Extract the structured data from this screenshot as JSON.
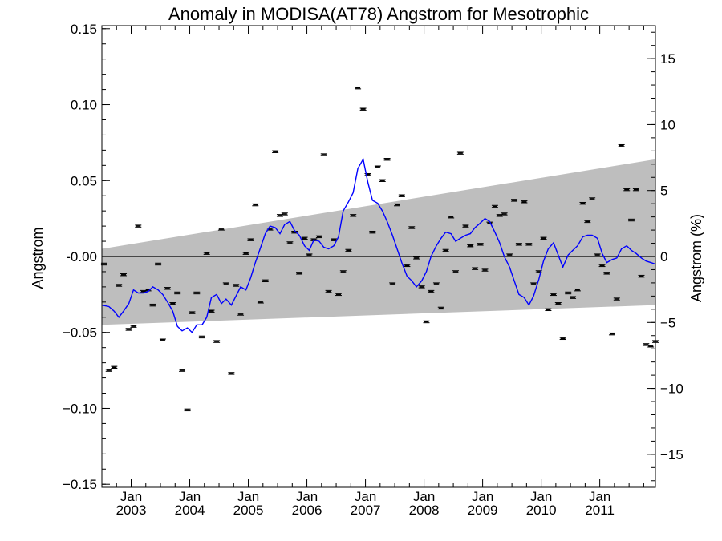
{
  "chart_data": {
    "type": "scatter",
    "title": "Anomaly in MODISA(AT78) Angstrom for Mesotrophic",
    "ylabel": "Angstrom",
    "y2label": "Angstrom (%)",
    "xlabel": "",
    "ylim": [
      -0.152,
      0.152
    ],
    "y2lim": [
      -17.5,
      17.5
    ],
    "xlim": [
      2002.5,
      2011.95
    ],
    "yticks": [
      {
        "v": 0.15,
        "label": "0.15"
      },
      {
        "v": 0.1,
        "label": "0.10"
      },
      {
        "v": 0.05,
        "label": "0.05"
      },
      {
        "v": 0.0,
        "label": "-0.00"
      },
      {
        "v": -0.05,
        "label": "−0.05"
      },
      {
        "v": -0.1,
        "label": "−0.10"
      },
      {
        "v": -0.15,
        "label": "−0.15"
      }
    ],
    "y2ticks": [
      {
        "v": 15,
        "label": "15"
      },
      {
        "v": 10,
        "label": "10"
      },
      {
        "v": 5,
        "label": "5"
      },
      {
        "v": 0,
        "label": "0"
      },
      {
        "v": -5,
        "label": "−5"
      },
      {
        "v": -10,
        "label": "−10"
      },
      {
        "v": -15,
        "label": "−15"
      }
    ],
    "xticks": [
      {
        "v": 2003.0,
        "month": "Jan",
        "year": "2003"
      },
      {
        "v": 2004.0,
        "month": "Jan",
        "year": "2004"
      },
      {
        "v": 2005.0,
        "month": "Jan",
        "year": "2005"
      },
      {
        "v": 2006.0,
        "month": "Jan",
        "year": "2006"
      },
      {
        "v": 2007.0,
        "month": "Jan",
        "year": "2007"
      },
      {
        "v": 2008.0,
        "month": "Jan",
        "year": "2008"
      },
      {
        "v": 2009.0,
        "month": "Jan",
        "year": "2009"
      },
      {
        "v": 2010.0,
        "month": "Jan",
        "year": "2010"
      },
      {
        "v": 2011.0,
        "month": "Jan",
        "year": "2011"
      }
    ],
    "band": {
      "x": [
        2002.5,
        2011.95
      ],
      "upper": [
        0.005,
        0.064
      ],
      "lower": [
        -0.045,
        -0.032
      ],
      "color": "#bebebe"
    },
    "zero_line": 0.0,
    "series": [
      {
        "kind": "points",
        "marker": "error-bar",
        "color": "#000000",
        "x": [
          2002.54,
          2002.62,
          2002.71,
          2002.79,
          2002.87,
          2002.96,
          2003.04,
          2003.12,
          2003.21,
          2003.29,
          2003.37,
          2003.46,
          2003.54,
          2003.62,
          2003.71,
          2003.79,
          2003.87,
          2003.96,
          2004.04,
          2004.12,
          2004.21,
          2004.29,
          2004.37,
          2004.46,
          2004.54,
          2004.62,
          2004.71,
          2004.79,
          2004.87,
          2004.96,
          2005.04,
          2005.12,
          2005.21,
          2005.29,
          2005.37,
          2005.46,
          2005.54,
          2005.62,
          2005.71,
          2005.79,
          2005.87,
          2005.96,
          2006.04,
          2006.12,
          2006.21,
          2006.29,
          2006.37,
          2006.46,
          2006.54,
          2006.62,
          2006.71,
          2006.79,
          2006.87,
          2006.96,
          2007.04,
          2007.12,
          2007.21,
          2007.29,
          2007.37,
          2007.46,
          2007.54,
          2007.62,
          2007.71,
          2007.79,
          2007.87,
          2007.96,
          2008.04,
          2008.12,
          2008.21,
          2008.29,
          2008.37,
          2008.46,
          2008.54,
          2008.62,
          2008.71,
          2008.79,
          2008.87,
          2008.96,
          2009.04,
          2009.12,
          2009.21,
          2009.29,
          2009.37,
          2009.46,
          2009.54,
          2009.62,
          2009.71,
          2009.79,
          2009.87,
          2009.96,
          2010.04,
          2010.12,
          2010.21,
          2010.29,
          2010.37,
          2010.46,
          2010.54,
          2010.62,
          2010.71,
          2010.79,
          2010.87,
          2010.96,
          2011.04,
          2011.12,
          2011.21,
          2011.29,
          2011.37,
          2011.46,
          2011.54,
          2011.62,
          2011.71,
          2011.79,
          2011.87,
          2011.95
        ],
        "y": [
          -0.005,
          -0.075,
          -0.073,
          -0.019,
          -0.012,
          -0.048,
          -0.046,
          0.02,
          -0.023,
          -0.022,
          -0.032,
          -0.005,
          -0.055,
          -0.021,
          -0.031,
          -0.024,
          -0.075,
          -0.101,
          -0.037,
          -0.024,
          -0.053,
          0.002,
          -0.036,
          -0.056,
          0.018,
          -0.018,
          -0.077,
          -0.019,
          -0.038,
          0.002,
          0.011,
          0.034,
          -0.03,
          -0.016,
          0.018,
          0.069,
          0.027,
          0.028,
          0.009,
          0.016,
          -0.011,
          0.012,
          0.001,
          0.011,
          0.013,
          0.067,
          -0.023,
          0.011,
          -0.025,
          -0.01,
          0.004,
          0.027,
          0.111,
          0.097,
          0.054,
          0.016,
          0.059,
          0.05,
          0.064,
          -0.018,
          0.034,
          0.04,
          -0.006,
          0.019,
          -0.001,
          -0.02,
          -0.043,
          -0.023,
          -0.018,
          -0.034,
          0.004,
          0.026,
          -0.01,
          0.068,
          0.02,
          0.007,
          -0.008,
          0.008,
          -0.009,
          0.022,
          0.033,
          0.027,
          0.028,
          0.001,
          0.037,
          0.008,
          0.036,
          0.008,
          -0.018,
          -0.01,
          0.012,
          -0.035,
          -0.025,
          -0.031,
          -0.054,
          -0.024,
          -0.027,
          -0.022,
          0.035,
          0.023,
          0.038,
          0.001,
          -0.006,
          -0.011,
          -0.051,
          -0.028,
          0.073,
          0.044,
          0.024,
          0.044,
          -0.013,
          -0.058,
          -0.059,
          -0.056
        ]
      },
      {
        "kind": "line",
        "name": "",
        "color": "#0000ff",
        "x": [
          2002.5,
          2002.62,
          2002.71,
          2002.79,
          2002.87,
          2002.96,
          2003.04,
          2003.12,
          2003.21,
          2003.29,
          2003.37,
          2003.46,
          2003.54,
          2003.62,
          2003.71,
          2003.79,
          2003.87,
          2003.96,
          2004.04,
          2004.12,
          2004.21,
          2004.29,
          2004.37,
          2004.46,
          2004.54,
          2004.62,
          2004.71,
          2004.79,
          2004.87,
          2004.96,
          2005.04,
          2005.12,
          2005.21,
          2005.29,
          2005.37,
          2005.46,
          2005.54,
          2005.62,
          2005.71,
          2005.79,
          2005.87,
          2005.96,
          2006.04,
          2006.12,
          2006.21,
          2006.29,
          2006.37,
          2006.46,
          2006.54,
          2006.62,
          2006.71,
          2006.79,
          2006.87,
          2006.96,
          2007.04,
          2007.12,
          2007.21,
          2007.29,
          2007.37,
          2007.46,
          2007.54,
          2007.62,
          2007.71,
          2007.79,
          2007.87,
          2007.96,
          2008.04,
          2008.12,
          2008.21,
          2008.29,
          2008.37,
          2008.46,
          2008.54,
          2008.62,
          2008.71,
          2008.79,
          2008.87,
          2008.96,
          2009.04,
          2009.12,
          2009.21,
          2009.29,
          2009.37,
          2009.46,
          2009.54,
          2009.62,
          2009.71,
          2009.79,
          2009.87,
          2009.96,
          2010.04,
          2010.12,
          2010.21,
          2010.29,
          2010.37,
          2010.46,
          2010.54,
          2010.62,
          2010.71,
          2010.79,
          2010.87,
          2010.96,
          2011.04,
          2011.12,
          2011.21,
          2011.29,
          2011.37,
          2011.46,
          2011.54,
          2011.62,
          2011.71,
          2011.79,
          2011.87,
          2011.95
        ],
        "y": [
          -0.032,
          -0.033,
          -0.036,
          -0.04,
          -0.036,
          -0.031,
          -0.022,
          -0.024,
          -0.024,
          -0.023,
          -0.02,
          -0.022,
          -0.025,
          -0.03,
          -0.036,
          -0.046,
          -0.049,
          -0.047,
          -0.05,
          -0.045,
          -0.045,
          -0.04,
          -0.027,
          -0.025,
          -0.031,
          -0.028,
          -0.032,
          -0.026,
          -0.02,
          -0.022,
          -0.014,
          -0.004,
          0.006,
          0.015,
          0.02,
          0.019,
          0.015,
          0.021,
          0.023,
          0.017,
          0.014,
          0.007,
          0.004,
          0.011,
          0.01,
          0.006,
          0.005,
          0.007,
          0.013,
          0.03,
          0.036,
          0.042,
          0.058,
          0.064,
          0.049,
          0.037,
          0.035,
          0.03,
          0.023,
          0.014,
          0.005,
          -0.004,
          -0.013,
          -0.016,
          -0.02,
          -0.016,
          -0.01,
          0.0,
          0.007,
          0.012,
          0.016,
          0.015,
          0.01,
          0.012,
          0.014,
          0.015,
          0.019,
          0.022,
          0.025,
          0.023,
          0.016,
          0.009,
          0.0,
          -0.007,
          -0.016,
          -0.025,
          -0.027,
          -0.032,
          -0.026,
          -0.015,
          -0.003,
          0.005,
          0.009,
          0.001,
          -0.007,
          0.001,
          0.004,
          0.007,
          0.013,
          0.014,
          0.014,
          0.012,
          0.002,
          -0.004,
          -0.002,
          -0.001,
          0.005,
          0.007,
          0.004,
          0.002,
          -0.001,
          -0.003,
          -0.004,
          -0.005
        ]
      }
    ],
    "grid": false,
    "legend": "none"
  }
}
